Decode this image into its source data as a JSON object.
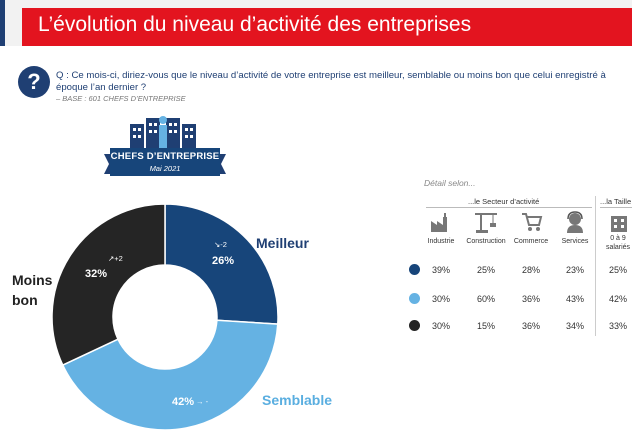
{
  "page": {
    "title": "L’évolution du niveau d’activité des entreprises",
    "question_line1": "Q : Ce mois-ci, diriez-vous que le niveau d’activité de votre entreprise est meilleur, semblable ou moins bon que celui enregistré à",
    "question_line2": "époque l’an dernier ?",
    "base": "– BASE : 601 CHEFS D’ENTREPRISE",
    "badge_label": "CHEFS D’ENTREPRISE",
    "badge_date": "Mai 2021"
  },
  "colors": {
    "meilleur": "#17457a",
    "semblable": "#65b2e3",
    "moins_bon": "#252525",
    "title_red": "#e3141f"
  },
  "chart_data": {
    "type": "pie",
    "subtype": "donut",
    "series": [
      {
        "name": "Meilleur",
        "value": 26,
        "value_label": "26%",
        "evolution": "-2"
      },
      {
        "name": "Semblable",
        "value": 42,
        "value_label": "42%",
        "evolution": "-"
      },
      {
        "name": "Moins bon",
        "value": 32,
        "value_label": "32%",
        "evolution": "+2"
      }
    ],
    "labels": {
      "meilleur": "Meilleur",
      "semblable": "Semblable",
      "moins_line1": "Moins",
      "moins_line2": "bon"
    }
  },
  "detail": {
    "title": "Détail selon...",
    "group_sector": "...le Secteur d’activité",
    "group_size": "...la Taille",
    "columns": [
      "Industrie",
      "Construction",
      "Commerce",
      "Services"
    ],
    "size_col_line1": "0 à 9",
    "size_col_line2": "salariés",
    "rows": [
      {
        "series": "Meilleur",
        "values": [
          "39%",
          "25%",
          "28%",
          "23%"
        ],
        "size_value": "25%"
      },
      {
        "series": "Semblable",
        "values": [
          "30%",
          "60%",
          "36%",
          "43%"
        ],
        "size_value": "42%"
      },
      {
        "series": "Moins bon",
        "values": [
          "30%",
          "15%",
          "36%",
          "34%"
        ],
        "size_value": "33%"
      }
    ]
  }
}
